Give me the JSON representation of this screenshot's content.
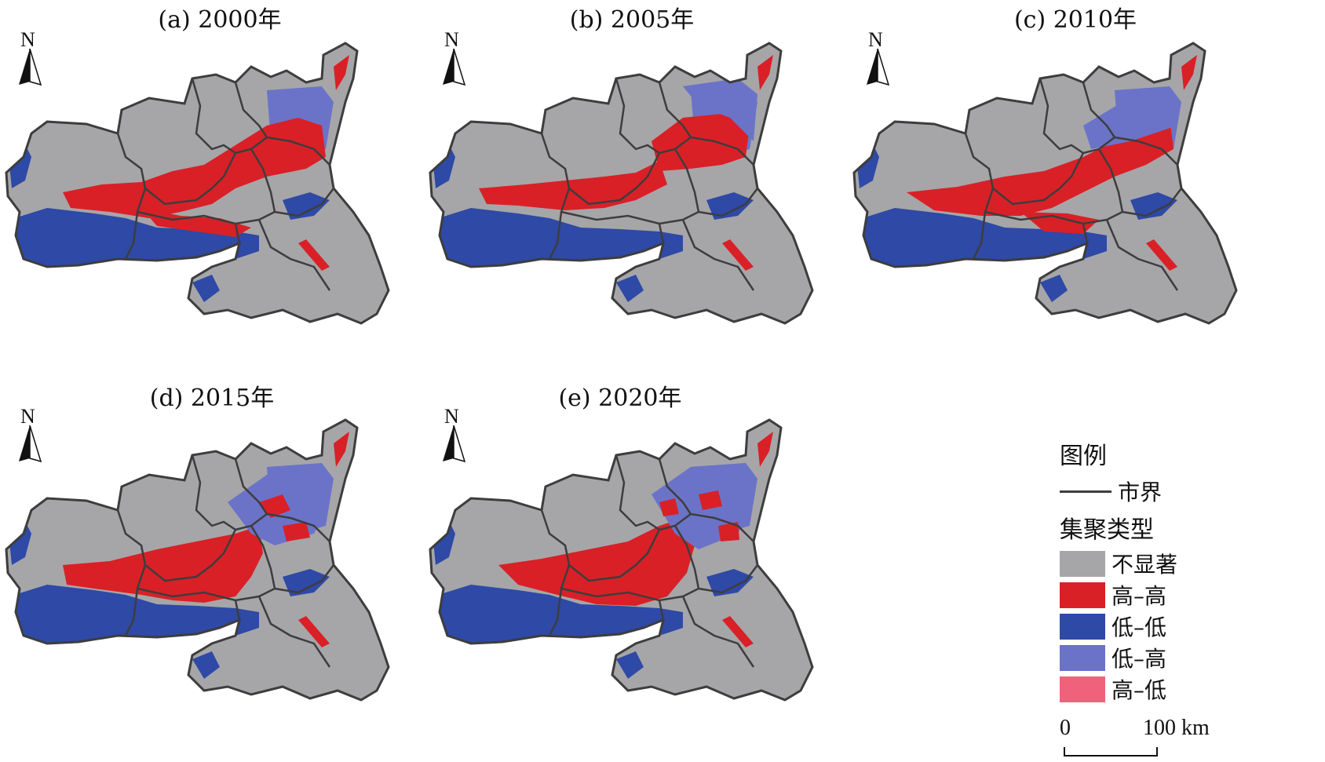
{
  "panels": [
    {
      "title": "(a) 2000年",
      "north": "N"
    },
    {
      "title": "(b) 2005年",
      "north": "N"
    },
    {
      "title": "(c) 2010年",
      "north": "N"
    },
    {
      "title": "(d) 2015年",
      "north": "N"
    },
    {
      "title": "(e) 2020年",
      "north": "N"
    }
  ],
  "legend": {
    "title": "图例",
    "boundary_label": "市界",
    "cluster_heading": "集聚类型",
    "classes": [
      {
        "label": "不显著",
        "color": "#a6a6a8"
      },
      {
        "label": "高–高",
        "color": "#d92027"
      },
      {
        "label": "低–低",
        "color": "#2e49a6"
      },
      {
        "label": "低–高",
        "color": "#6b73c8"
      },
      {
        "label": "高–低",
        "color": "#f0627c"
      }
    ]
  },
  "scale_bar": {
    "start": "0",
    "end": "100 km"
  },
  "colors": {
    "boundary": "#3d3d3d",
    "background": "#ffffff"
  }
}
